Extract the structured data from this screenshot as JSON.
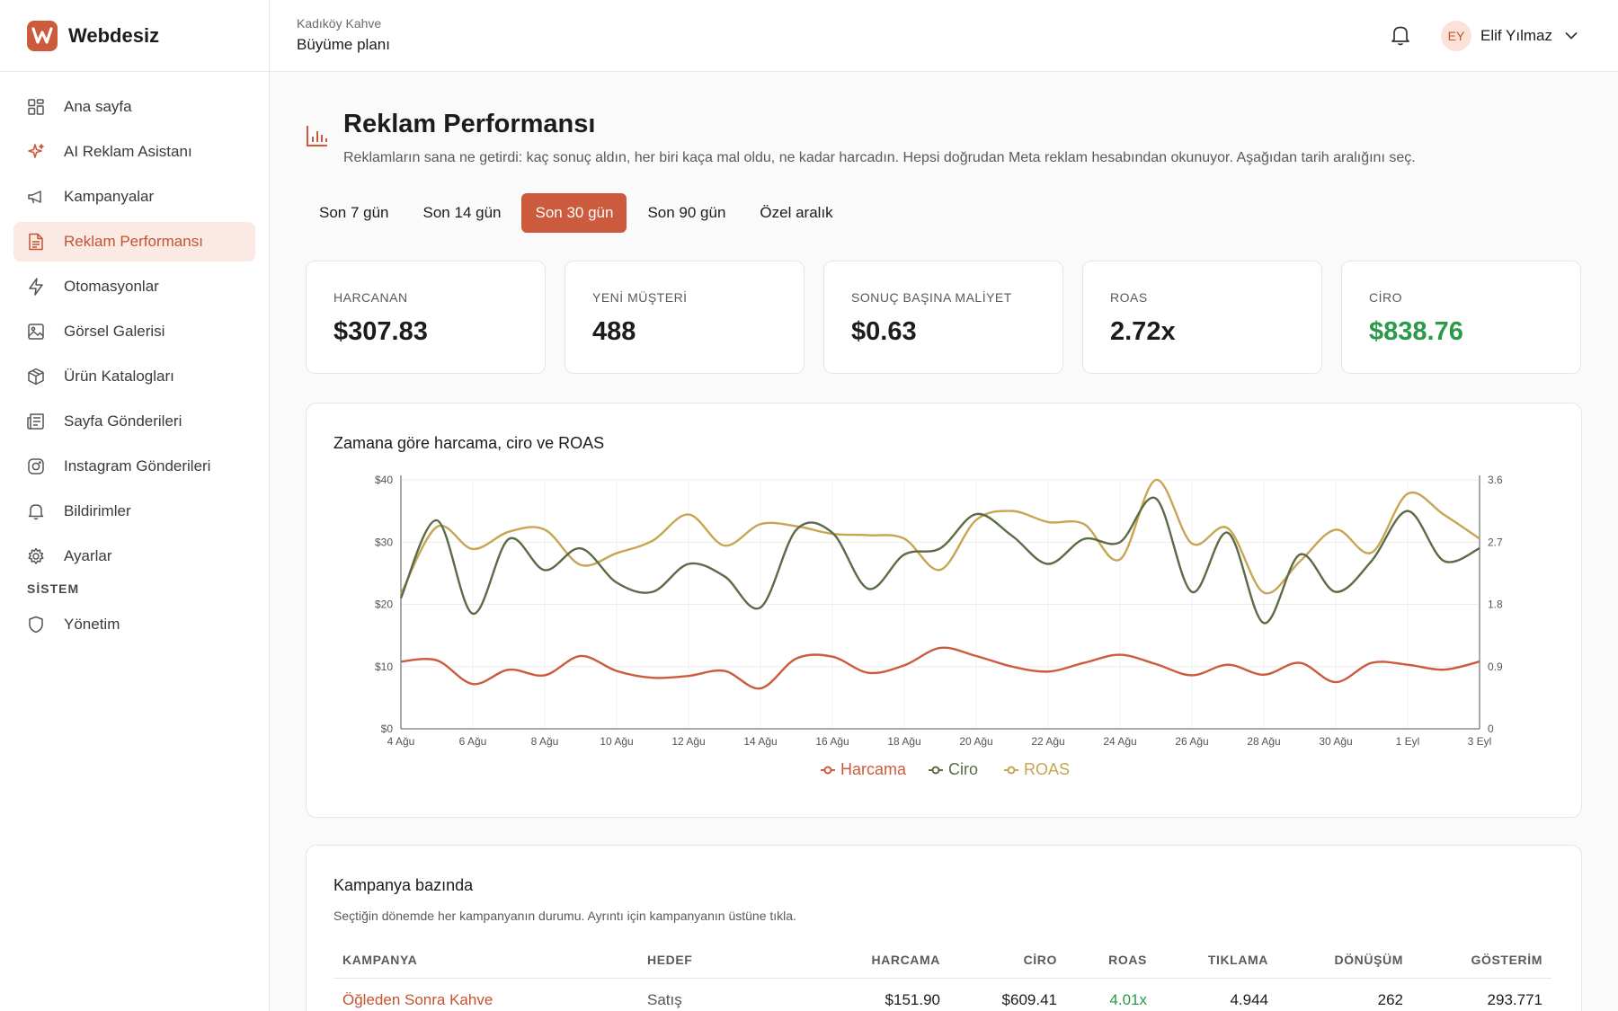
{
  "brand": {
    "name": "Webdesiz",
    "logo_letter": "W"
  },
  "sidebar": {
    "items": [
      {
        "label": "Ana sayfa",
        "icon": "dashboard-grid-icon"
      },
      {
        "label": "AI Reklam Asistanı",
        "icon": "sparkle-icon"
      },
      {
        "label": "Kampanyalar",
        "icon": "megaphone-icon"
      },
      {
        "label": "Reklam Performansı",
        "icon": "report-icon",
        "active": true
      },
      {
        "label": "Otomasyonlar",
        "icon": "lightning-icon"
      },
      {
        "label": "Görsel Galerisi",
        "icon": "image-icon"
      },
      {
        "label": "Ürün Katalogları",
        "icon": "package-icon"
      },
      {
        "label": "Sayfa Gönderileri",
        "icon": "newspaper-icon"
      },
      {
        "label": "Instagram Gönderileri",
        "icon": "instagram-icon"
      },
      {
        "label": "Bildirimler",
        "icon": "bell-icon"
      },
      {
        "label": "Ayarlar",
        "icon": "gear-icon"
      }
    ],
    "section_label": "SİSTEM",
    "system_items": [
      {
        "label": "Yönetim",
        "icon": "shield-icon"
      }
    ]
  },
  "header": {
    "org_name": "Kadıköy Kahve",
    "plan": "Büyüme planı",
    "user": {
      "initials": "EY",
      "name": "Elif Yılmaz"
    }
  },
  "page": {
    "title": "Reklam Performansı",
    "description": "Reklamların sana ne getirdi: kaç sonuç aldın, her biri kaça mal oldu, ne kadar harcadın. Hepsi doğrudan Meta reklam hesabından okunuyor. Aşağıdan tarih aralığını seç."
  },
  "date_ranges": [
    {
      "label": "Son 7 gün"
    },
    {
      "label": "Son 14 gün"
    },
    {
      "label": "Son 30 gün",
      "active": true
    },
    {
      "label": "Son 90 gün"
    },
    {
      "label": "Özel aralık"
    }
  ],
  "stats": [
    {
      "label": "HARCANAN",
      "value": "$307.83"
    },
    {
      "label": "YENİ MÜŞTERİ",
      "value": "488"
    },
    {
      "label": "SONUÇ BAŞINA MALİYET",
      "value": "$0.63"
    },
    {
      "label": "ROAS",
      "value": "2.72x"
    },
    {
      "label": "CİRO",
      "value": "$838.76",
      "highlight": "#2a9a4a"
    }
  ],
  "colors": {
    "accent": "#cc5a3c",
    "harcama": "#cc5a3c",
    "ciro": "#5b6b47",
    "roas": "#c7a552",
    "positive": "#2a9a4a"
  },
  "chart_data": {
    "type": "line",
    "title": "Zamana göre harcama, ciro ve ROAS",
    "x": [
      "4 Ağu",
      "5 Ağu",
      "6 Ağu",
      "7 Ağu",
      "8 Ağu",
      "9 Ağu",
      "10 Ağu",
      "11 Ağu",
      "12 Ağu",
      "13 Ağu",
      "14 Ağu",
      "15 Ağu",
      "16 Ağu",
      "17 Ağu",
      "18 Ağu",
      "19 Ağu",
      "20 Ağu",
      "21 Ağu",
      "22 Ağu",
      "23 Ağu",
      "24 Ağu",
      "25 Ağu",
      "26 Ağu",
      "27 Ağu",
      "28 Ağu",
      "29 Ağu",
      "30 Ağu",
      "31 Ağu",
      "1 Eyl",
      "2 Eyl",
      "3 Eyl"
    ],
    "x_ticks": [
      "4 Ağu",
      "6 Ağu",
      "8 Ağu",
      "10 Ağu",
      "12 Ağu",
      "14 Ağu",
      "16 Ağu",
      "18 Ağu",
      "20 Ağu",
      "22 Ağu",
      "24 Ağu",
      "26 Ağu",
      "28 Ağu",
      "30 Ağu",
      "1 Eyl",
      "3 Eyl"
    ],
    "y_left": {
      "ticks": [
        "$0",
        "$10",
        "$20",
        "$30",
        "$40"
      ],
      "range": [
        0,
        40
      ]
    },
    "y_right": {
      "ticks": [
        "0",
        "0.9",
        "1.8",
        "2.7",
        "3.6"
      ],
      "range": [
        0,
        3.6
      ]
    },
    "series": [
      {
        "name": "Harcama",
        "axis": "left",
        "values": [
          10.8,
          11.0,
          7.2,
          9.5,
          8.6,
          11.7,
          9.3,
          8.2,
          8.5,
          9.3,
          6.5,
          11.3,
          11.6,
          9.0,
          10.2,
          13.0,
          11.7,
          10.0,
          9.2,
          10.6,
          11.9,
          10.4,
          8.6,
          10.3,
          8.7,
          10.6,
          7.5,
          10.6,
          10.3,
          9.5,
          10.8
        ],
        "color": "#cc5a3c"
      },
      {
        "name": "Ciro",
        "axis": "left",
        "values": [
          21,
          33.5,
          18.5,
          30.5,
          25.5,
          29,
          23.5,
          22,
          26.5,
          24.5,
          19.5,
          32,
          31.5,
          22.5,
          28,
          29,
          34.5,
          31,
          26.5,
          30.5,
          30,
          37,
          22,
          31.5,
          17,
          28,
          22,
          27,
          35,
          27,
          29
        ],
        "color": "#5b6b47"
      },
      {
        "name": "ROAS",
        "axis": "right",
        "values": [
          1.95,
          2.92,
          2.6,
          2.85,
          2.88,
          2.37,
          2.54,
          2.72,
          3.1,
          2.65,
          2.96,
          2.93,
          2.82,
          2.8,
          2.75,
          2.3,
          3.02,
          3.15,
          2.99,
          2.96,
          2.45,
          3.6,
          2.68,
          2.9,
          1.97,
          2.42,
          2.88,
          2.55,
          3.4,
          3.1,
          2.75
        ],
        "color": "#c7a552"
      }
    ],
    "legend": "bottom-center",
    "grid": true
  },
  "campaigns": {
    "title": "Kampanya bazında",
    "description": "Seçtiğin dönemde her kampanyanın durumu. Ayrıntı için kampanyanın üstüne tıkla.",
    "columns": [
      "KAMPANYA",
      "HEDEF",
      "HARCAMA",
      "CİRO",
      "ROAS",
      "TIKLAMA",
      "DÖNÜŞÜM",
      "GÖSTERİM"
    ],
    "rows": [
      {
        "name": "Öğleden Sonra Kahve",
        "goal": "Satış",
        "spend": "$151.90",
        "revenue": "$609.41",
        "roas": "4.01x",
        "clicks": "4.944",
        "conversions": "262",
        "impressions": "293.771"
      }
    ]
  }
}
